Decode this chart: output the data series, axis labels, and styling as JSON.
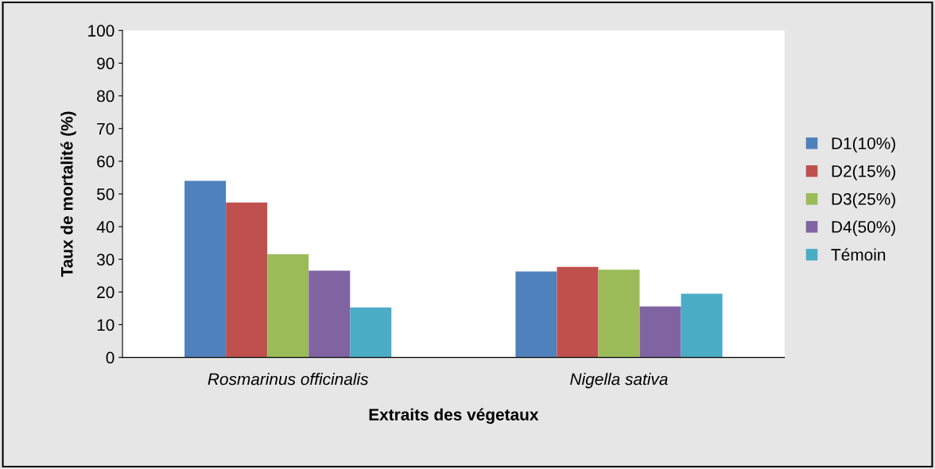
{
  "chart_data": {
    "type": "bar",
    "ylabel": "Taux de mortalité (%)",
    "xlabel": "Extraits des végetaux",
    "categories": [
      "Rosmarinus officinalis",
      "Nigella sativa"
    ],
    "series": [
      {
        "name": "D1(10%)",
        "color": "#4f81bd",
        "values": [
          54,
          26.3
        ]
      },
      {
        "name": "D2(15%)",
        "color": "#c0504d",
        "values": [
          47.4,
          27.7
        ]
      },
      {
        "name": "D3(25%)",
        "color": "#9bbb59",
        "values": [
          31.6,
          26.8
        ]
      },
      {
        "name": "D4(50%)",
        "color": "#8064a2",
        "values": [
          26.5,
          15.6
        ]
      },
      {
        "name": "Témoin",
        "color": "#4bacc6",
        "values": [
          15.3,
          19.5
        ]
      }
    ],
    "ylim": [
      0,
      100
    ],
    "yticks": [
      0,
      10,
      20,
      30,
      40,
      50,
      60,
      70,
      80,
      90,
      100
    ],
    "grid": false,
    "legend": "right"
  }
}
